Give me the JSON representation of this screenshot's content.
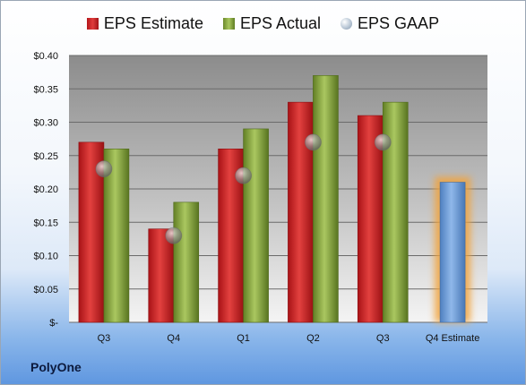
{
  "company": "PolyOne",
  "chart_data": {
    "type": "bar",
    "categories": [
      "Q3",
      "Q4",
      "Q1",
      "Q2",
      "Q3",
      "Q4 Estimate"
    ],
    "series": [
      {
        "name": "EPS Estimate",
        "values": [
          0.27,
          0.14,
          0.26,
          0.33,
          0.31,
          null
        ],
        "color": "#c8201f"
      },
      {
        "name": "EPS Actual",
        "values": [
          0.26,
          0.18,
          0.29,
          0.37,
          0.33,
          0.21
        ],
        "color": "#8fae45"
      },
      {
        "name": "EPS GAAP",
        "values": [
          0.23,
          0.13,
          0.22,
          0.27,
          0.27,
          null
        ],
        "color": "#a9b8c8"
      }
    ],
    "highlight": {
      "category": "Q4 Estimate",
      "bar_color": "#6e9fd8",
      "glow_color": "#f2a33a"
    },
    "ylim": [
      0,
      0.4
    ],
    "yticks": [
      0,
      0.05,
      0.1,
      0.15,
      0.2,
      0.25,
      0.3,
      0.35,
      0.4
    ],
    "ytick_labels": [
      "$-",
      "$0.05",
      "$0.10",
      "$0.15",
      "$0.20",
      "$0.25",
      "$0.30",
      "$0.35",
      "$0.40"
    ],
    "legend_position": "top",
    "grid": true
  }
}
